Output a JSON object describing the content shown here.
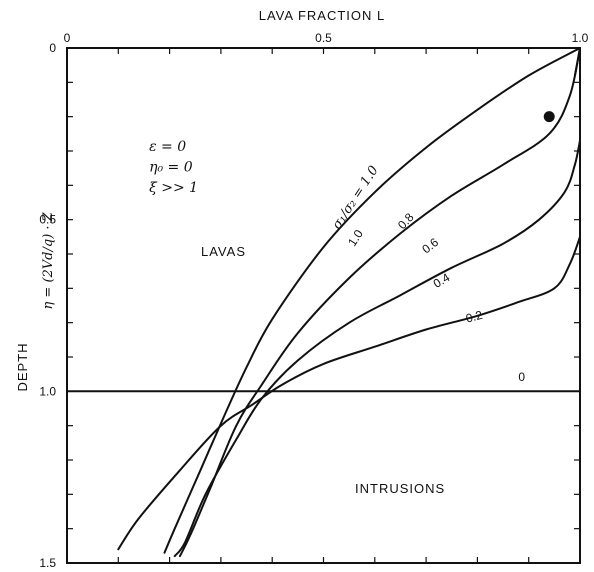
{
  "chart_data": {
    "type": "line",
    "xlabel": "LAVA FRACTION L",
    "ylabel": "DEPTH",
    "ylabel_eq": "η = (2Vd/q) · Z",
    "xlim": [
      0,
      1
    ],
    "ylim": [
      0,
      1.5
    ],
    "y_inverted": true,
    "x_axis_position": "top",
    "x_ticks": [
      "0",
      "0.5",
      "1.0"
    ],
    "y_ticks": [
      "0",
      "0.5",
      "1.0",
      "1.5"
    ],
    "grid": false,
    "params": [
      "ε = 0",
      "η₀ = 0",
      "ξ >> 1"
    ],
    "regions": [
      "LAVAS",
      "INTRUSIONS"
    ],
    "series_param_label": "σ₁/σ₂ = 1.0",
    "series": [
      {
        "name": "1.0",
        "points": [
          [
            1.0,
            0.0
          ],
          [
            0.9,
            0.08
          ],
          [
            0.8,
            0.18
          ],
          [
            0.7,
            0.29
          ],
          [
            0.6,
            0.42
          ],
          [
            0.5,
            0.58
          ],
          [
            0.4,
            0.79
          ],
          [
            0.35,
            0.93
          ],
          [
            0.31,
            1.06
          ],
          [
            0.26,
            1.23
          ],
          [
            0.21,
            1.4
          ],
          [
            0.19,
            1.47
          ]
        ]
      },
      {
        "name": "0.8",
        "points": [
          [
            1.0,
            0.0
          ],
          [
            0.98,
            0.14
          ],
          [
            0.94,
            0.25
          ],
          [
            0.85,
            0.34
          ],
          [
            0.75,
            0.43
          ],
          [
            0.65,
            0.54
          ],
          [
            0.55,
            0.67
          ],
          [
            0.45,
            0.83
          ],
          [
            0.38,
            0.98
          ],
          [
            0.33,
            1.1
          ],
          [
            0.28,
            1.28
          ],
          [
            0.24,
            1.42
          ],
          [
            0.22,
            1.48
          ]
        ]
      },
      {
        "name": "0.6",
        "points": [
          [
            1.0,
            0.27
          ],
          [
            0.99,
            0.34
          ],
          [
            0.97,
            0.42
          ],
          [
            0.92,
            0.5
          ],
          [
            0.85,
            0.57
          ],
          [
            0.75,
            0.64
          ],
          [
            0.65,
            0.72
          ],
          [
            0.55,
            0.8
          ],
          [
            0.45,
            0.91
          ],
          [
            0.38,
            1.02
          ],
          [
            0.33,
            1.14
          ],
          [
            0.27,
            1.3
          ],
          [
            0.23,
            1.44
          ],
          [
            0.21,
            1.48
          ]
        ]
      },
      {
        "name": "0.4",
        "points": [
          [
            1.0,
            0.55
          ],
          [
            0.98,
            0.63
          ],
          [
            0.95,
            0.7
          ],
          [
            0.88,
            0.74
          ],
          [
            0.8,
            0.78
          ],
          [
            0.7,
            0.82
          ],
          [
            0.6,
            0.87
          ],
          [
            0.5,
            0.92
          ],
          [
            0.42,
            0.98
          ],
          [
            0.36,
            1.04
          ],
          [
            0.3,
            1.1
          ],
          [
            0.22,
            1.23
          ],
          [
            0.14,
            1.37
          ],
          [
            0.1,
            1.46
          ]
        ]
      },
      {
        "name": "0.2",
        "points": [
          [
            1.0,
            0.0
          ],
          [
            0.99,
            0.08
          ]
        ]
      },
      {
        "name": "0",
        "points": [
          [
            0.0,
            1.0
          ],
          [
            1.0,
            1.0
          ]
        ]
      }
    ],
    "point_marker": {
      "x": 0.94,
      "y": 0.2
    }
  }
}
